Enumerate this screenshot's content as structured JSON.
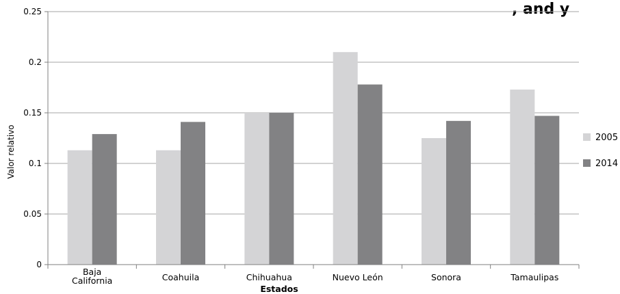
{
  "title_fragment": ", and y",
  "chart_data": {
    "type": "bar",
    "categories": [
      [
        "Baja",
        "California"
      ],
      [
        "Coahuila"
      ],
      [
        "Chihuahua"
      ],
      [
        "Nuevo León"
      ],
      [
        "Sonora"
      ],
      [
        "Tamaulipas"
      ]
    ],
    "series": [
      {
        "name": "2005",
        "color": "#d4d4d6",
        "values": [
          0.113,
          0.113,
          0.15,
          0.21,
          0.125,
          0.173
        ]
      },
      {
        "name": "2014",
        "color": "#828284",
        "values": [
          0.129,
          0.141,
          0.15,
          0.178,
          0.142,
          0.147
        ]
      }
    ],
    "xlabel": "Estados",
    "ylabel": "Valor  relativo",
    "ylim": [
      0,
      0.25
    ],
    "yticks": [
      0,
      0.05,
      0.1,
      0.15,
      0.2,
      0.25
    ],
    "ytick_labels": [
      "0",
      "0.05",
      "0.1",
      "0.15",
      "0.2",
      "0.25"
    ],
    "grid": true,
    "legend_position": "right"
  }
}
